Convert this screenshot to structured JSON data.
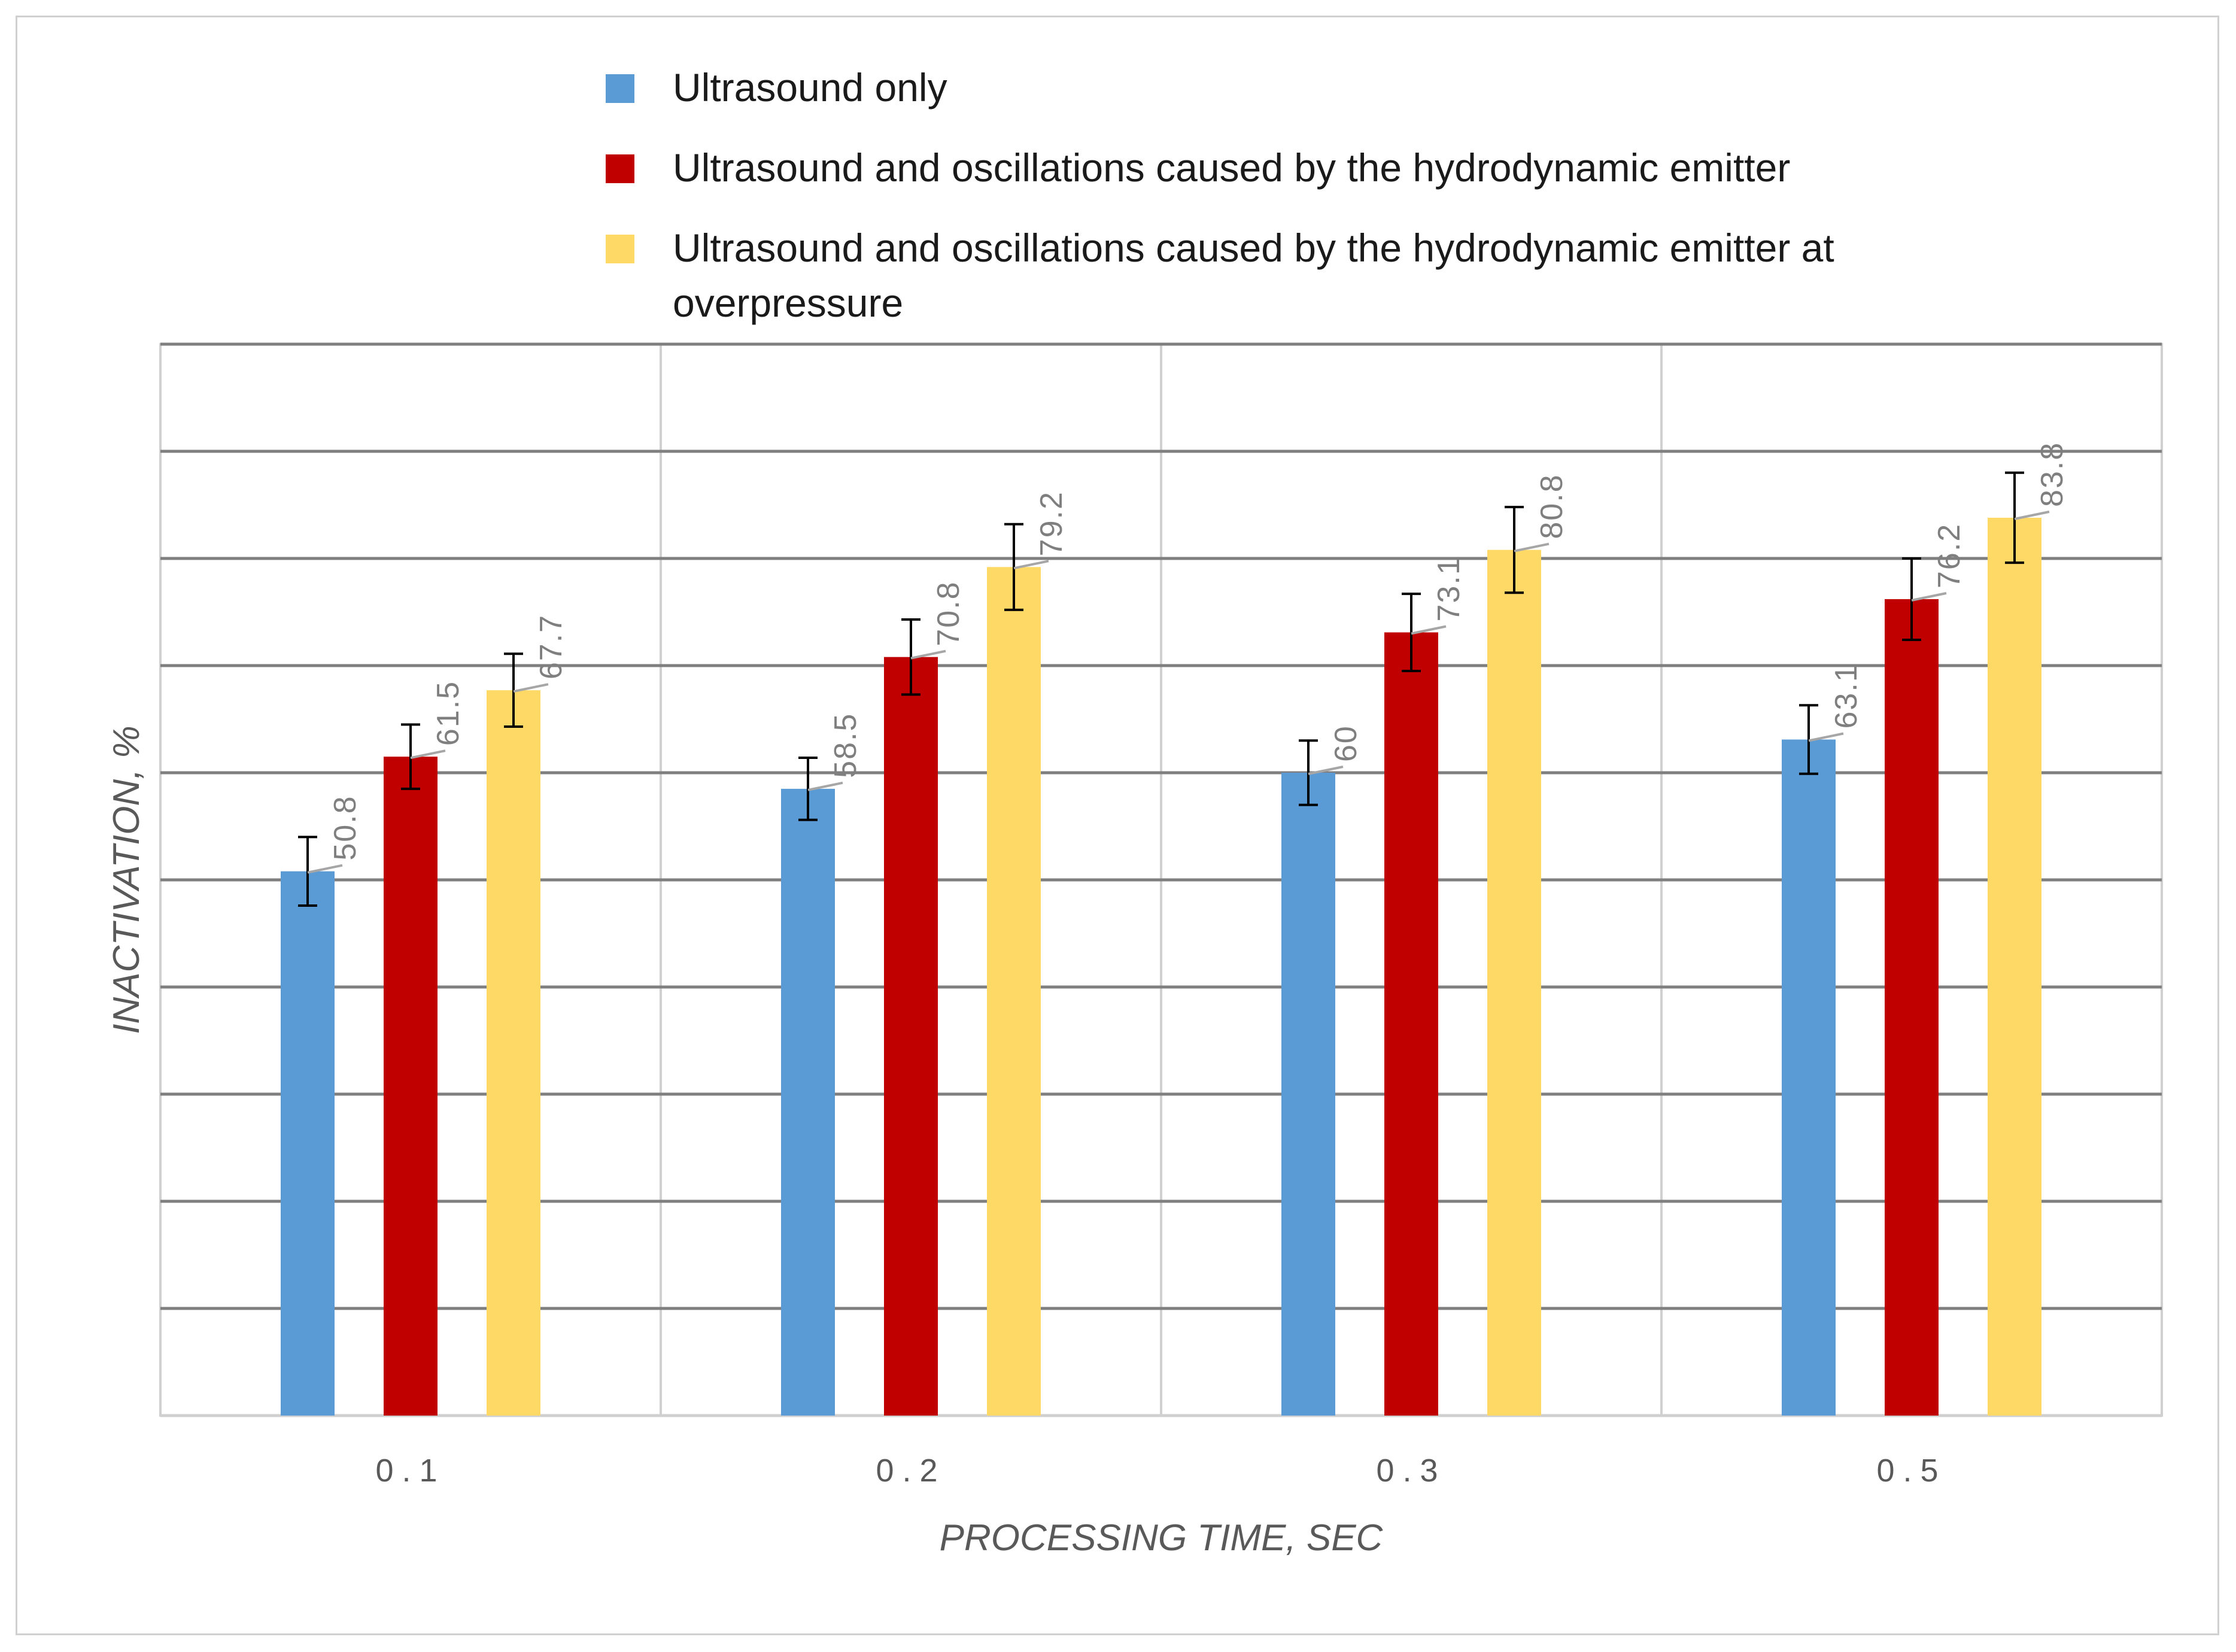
{
  "chart_data": {
    "type": "bar",
    "title": "",
    "xlabel": "PROCESSING TIME, SEC",
    "ylabel": "INACTIVATION, %",
    "categories": [
      "0.1",
      "0.2",
      "0.3",
      "0.5"
    ],
    "ylim": [
      0,
      100
    ],
    "y_gridlines_every": 10,
    "y_tick_labels_shown": false,
    "error_bars": "symmetric, approx. ±3.4",
    "legend_position": "top",
    "series": [
      {
        "name": "Ultrasound only",
        "color": "#5B9BD5",
        "values": [
          50.8,
          58.5,
          60,
          63.1
        ],
        "value_labels": [
          "50.8",
          "58.5",
          "60",
          "63.1"
        ],
        "errors": [
          3.2,
          2.9,
          3.0,
          3.2
        ]
      },
      {
        "name": "Ultrasound and oscillations caused by the hydrodynamic emitter",
        "color": "#C00000",
        "values": [
          61.5,
          70.8,
          73.1,
          76.2
        ],
        "value_labels": [
          "61.5",
          "70.8",
          "73.1",
          "76.2"
        ],
        "errors": [
          3.0,
          3.5,
          3.6,
          3.8
        ]
      },
      {
        "name": "Ultrasound and oscillations caused by the hydrodynamic emitter at overpressure",
        "color": "#FFD966",
        "values": [
          67.7,
          79.2,
          80.8,
          83.8
        ],
        "value_labels": [
          "67.7",
          "79.2",
          "80.8",
          "83.8"
        ],
        "errors": [
          3.4,
          4.0,
          4.0,
          4.2
        ]
      }
    ]
  }
}
